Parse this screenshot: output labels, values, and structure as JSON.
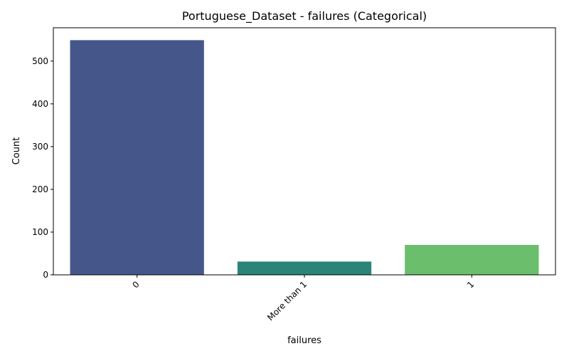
{
  "chart_data": {
    "type": "bar",
    "title": "Portuguese_Dataset - failures (Categorical)",
    "xlabel": "failures",
    "ylabel": "Count",
    "categories": [
      "0",
      "More than 1",
      "1"
    ],
    "values": [
      549,
      31,
      70
    ],
    "colors": [
      "#45578a",
      "#2a8478",
      "#6abe6c"
    ],
    "ylim": [
      0,
      578
    ],
    "yticks": [
      0,
      100,
      200,
      300,
      400,
      500
    ],
    "xtick_rotation": 45,
    "grid": false,
    "legend": "none"
  }
}
